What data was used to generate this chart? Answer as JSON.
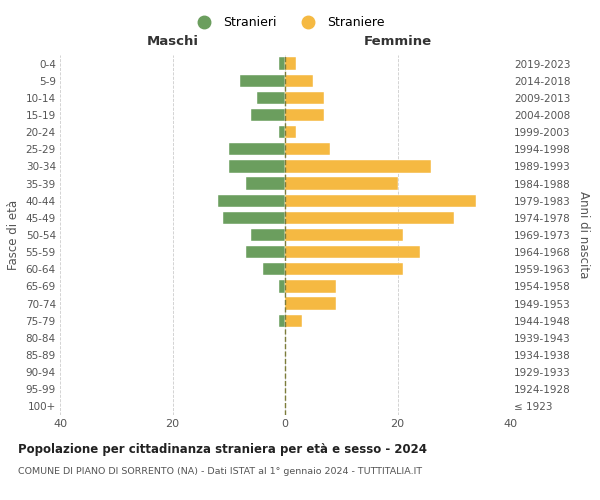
{
  "age_groups": [
    "100+",
    "95-99",
    "90-94",
    "85-89",
    "80-84",
    "75-79",
    "70-74",
    "65-69",
    "60-64",
    "55-59",
    "50-54",
    "45-49",
    "40-44",
    "35-39",
    "30-34",
    "25-29",
    "20-24",
    "15-19",
    "10-14",
    "5-9",
    "0-4"
  ],
  "birth_years": [
    "≤ 1923",
    "1924-1928",
    "1929-1933",
    "1934-1938",
    "1939-1943",
    "1944-1948",
    "1949-1953",
    "1954-1958",
    "1959-1963",
    "1964-1968",
    "1969-1973",
    "1974-1978",
    "1979-1983",
    "1984-1988",
    "1989-1993",
    "1994-1998",
    "1999-2003",
    "2004-2008",
    "2009-2013",
    "2014-2018",
    "2019-2023"
  ],
  "maschi": [
    0,
    0,
    0,
    0,
    0,
    1,
    0,
    1,
    4,
    7,
    6,
    11,
    12,
    7,
    10,
    10,
    1,
    6,
    5,
    8,
    1
  ],
  "femmine": [
    0,
    0,
    0,
    0,
    0,
    3,
    9,
    9,
    21,
    24,
    21,
    30,
    34,
    20,
    26,
    8,
    2,
    7,
    7,
    5,
    2
  ],
  "maschi_color": "#6b9e5e",
  "femmine_color": "#f5b942",
  "background_color": "#ffffff",
  "grid_color": "#cccccc",
  "dashed_line_color": "#7c7c3a",
  "title": "Popolazione per cittadinanza straniera per età e sesso - 2024",
  "subtitle": "COMUNE DI PIANO DI SORRENTO (NA) - Dati ISTAT al 1° gennaio 2024 - TUTTITALIA.IT",
  "xlabel_left": "Maschi",
  "xlabel_right": "Femmine",
  "ylabel_left": "Fasce di età",
  "ylabel_right": "Anni di nascita",
  "xlim": 40,
  "legend_stranieri": "Stranieri",
  "legend_straniere": "Straniere"
}
